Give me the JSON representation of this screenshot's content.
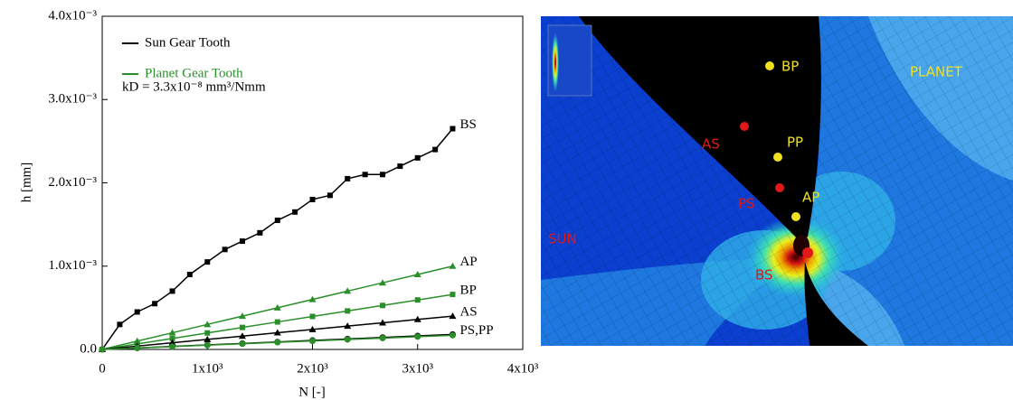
{
  "chart_data": {
    "type": "line",
    "xlabel": "N [-]",
    "ylabel": "h [mm]",
    "annotation": "kD = 3.3x10⁻⁸ mm³/Nmm",
    "xlim": [
      0,
      4000
    ],
    "ylim": [
      0,
      0.004
    ],
    "xticks": [
      0,
      {
        "value": 1000,
        "label": "1x10³"
      },
      {
        "value": 2000,
        "label": "2x10³"
      },
      {
        "value": 3000,
        "label": "3x10³"
      },
      {
        "value": 4000,
        "label": "4x10³"
      }
    ],
    "yticks": [
      {
        "value": 0,
        "label": "0.0"
      },
      {
        "value": 0.001,
        "label": "1.0x10⁻³"
      },
      {
        "value": 0.002,
        "label": "2.0x10⁻³"
      },
      {
        "value": 0.003,
        "label": "3.0x10⁻³"
      },
      {
        "value": 0.004,
        "label": "4.0x10⁻³"
      }
    ],
    "legend": [
      {
        "name": "Sun Gear Tooth",
        "color": "#000000"
      },
      {
        "name": "Planet Gear Tooth",
        "color": "#2a8f2a"
      }
    ],
    "series": [
      {
        "name": "BS",
        "color": "#000000",
        "marker": "square",
        "x": [
          0,
          167,
          333,
          500,
          667,
          833,
          1000,
          1167,
          1333,
          1500,
          1667,
          1833,
          2000,
          2167,
          2333,
          2500,
          2667,
          2833,
          3000,
          3167,
          3333
        ],
        "values": [
          0,
          0.0003,
          0.00045,
          0.00055,
          0.0007,
          0.0009,
          0.00105,
          0.0012,
          0.0013,
          0.0014,
          0.00155,
          0.00165,
          0.0018,
          0.00185,
          0.00205,
          0.0021,
          0.0021,
          0.0022,
          0.0023,
          0.0024,
          0.00265
        ]
      },
      {
        "name": "AP",
        "color": "#2a8f2a",
        "marker": "triangle",
        "x": [
          0,
          333,
          667,
          1000,
          1333,
          1667,
          2000,
          2333,
          2667,
          3000,
          3333
        ],
        "values": [
          0,
          0.0001,
          0.0002,
          0.0003,
          0.0004,
          0.0005,
          0.0006,
          0.0007,
          0.0008,
          0.0009,
          0.001
        ]
      },
      {
        "name": "BP",
        "color": "#2a8f2a",
        "marker": "square",
        "x": [
          0,
          333,
          667,
          1000,
          1333,
          1667,
          2000,
          2333,
          2667,
          3000,
          3333
        ],
        "values": [
          0,
          6.6e-05,
          0.000132,
          0.000198,
          0.000264,
          0.00033,
          0.000396,
          0.000462,
          0.000528,
          0.000594,
          0.00066
        ]
      },
      {
        "name": "AS",
        "color": "#000000",
        "marker": "triangle",
        "x": [
          0,
          333,
          667,
          1000,
          1333,
          1667,
          2000,
          2333,
          2667,
          3000,
          3333
        ],
        "values": [
          0,
          4e-05,
          8e-05,
          0.00012,
          0.00016,
          0.0002,
          0.00024,
          0.00028,
          0.00032,
          0.00036,
          0.0004
        ]
      },
      {
        "name": "PS,PP",
        "color": "#000000",
        "marker": "circle",
        "x": [
          0,
          333,
          667,
          1000,
          1333,
          1667,
          2000,
          2333,
          2667,
          3000,
          3333
        ],
        "values": [
          0,
          1.8e-05,
          3.6e-05,
          5.4e-05,
          7.2e-05,
          9e-05,
          0.000108,
          0.000126,
          0.000144,
          0.000162,
          0.00018
        ]
      },
      {
        "color": "#2a8f2a",
        "marker": "circle",
        "x": [
          0,
          333,
          667,
          1000,
          1333,
          1667,
          2000,
          2333,
          2667,
          3000,
          3333
        ],
        "values": [
          0,
          1.7e-05,
          3.4e-05,
          5.1e-05,
          6.8e-05,
          8.5e-05,
          0.000102,
          0.000119,
          0.000136,
          0.000153,
          0.00017
        ]
      }
    ]
  },
  "fe_image": {
    "labels": [
      "BP",
      "PLANET",
      "AS",
      "PP",
      "PS",
      "AP",
      "SUN",
      "BS"
    ]
  }
}
